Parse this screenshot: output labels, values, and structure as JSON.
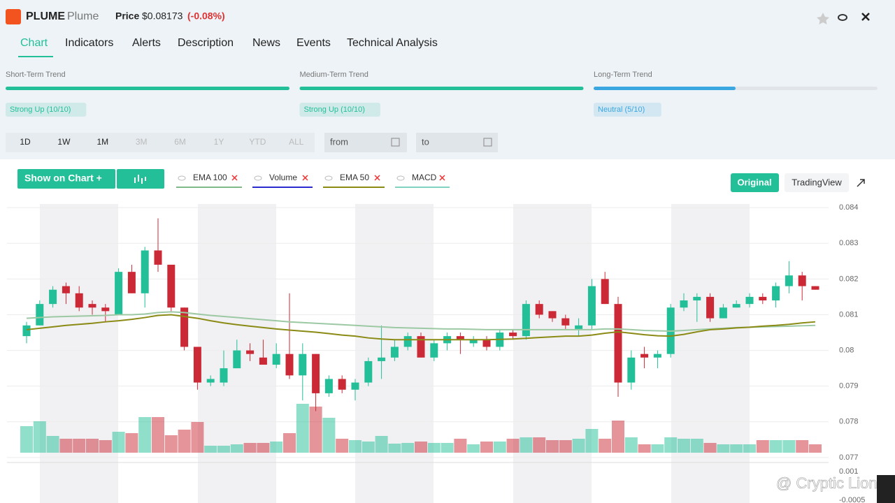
{
  "header": {
    "symbol": "PLUME",
    "name": "Plume",
    "price_label": "Price",
    "price": "$0.08173",
    "change": "(-0.08%)"
  },
  "tabs": [
    "Chart",
    "Indicators",
    "Alerts",
    "Description",
    "News",
    "Events",
    "Technical Analysis"
  ],
  "trends": [
    {
      "label": "Short-Term Trend",
      "status": "Strong Up (10/10)",
      "score": 10,
      "max": 10,
      "color": "#22bf98"
    },
    {
      "label": "Medium-Term Trend",
      "status": "Strong Up (10/10)",
      "score": 10,
      "max": 10,
      "color": "#22bf98"
    },
    {
      "label": "Long-Term Trend",
      "status": "Neutral (5/10)",
      "score": 5,
      "max": 10,
      "color": "#3aa7e0"
    }
  ],
  "ranges": [
    "1D",
    "1W",
    "1M",
    "3M",
    "6M",
    "1Y",
    "YTD",
    "ALL"
  ],
  "date_inputs": [
    "from",
    "to"
  ],
  "toolbar": {
    "show_button": "Show on Chart +",
    "indicators": [
      {
        "name": "EMA 100",
        "color": "#7fb98a"
      },
      {
        "name": "Volume",
        "color": "#2a2ad0"
      },
      {
        "name": "EMA 50",
        "color": "#8a8a14"
      },
      {
        "name": "MACD",
        "color": "#7fd3c0"
      }
    ],
    "views": [
      "Original",
      "TradingView"
    ]
  },
  "chart_data": {
    "type": "candlestick",
    "up_color": "#22bf98",
    "down_color": "#cc2936",
    "open": [
      0.0804,
      0.0807,
      0.0813,
      0.0818,
      0.0816,
      0.0813,
      0.0812,
      0.081,
      0.0822,
      0.0816,
      0.0828,
      0.0824,
      0.0812,
      0.0801,
      0.0791,
      0.0791,
      0.0795,
      0.08,
      0.0798,
      0.0796,
      0.0799,
      0.0793,
      0.0799,
      0.0788,
      0.0792,
      0.0789,
      0.0791,
      0.0797,
      0.0798,
      0.0801,
      0.0804,
      0.0798,
      0.0802,
      0.0804,
      0.0802,
      0.0803,
      0.0801,
      0.0805,
      0.0804,
      0.0813,
      0.0811,
      0.0809,
      0.0806,
      0.0807,
      0.082,
      0.0813,
      0.0791,
      0.0799,
      0.0798,
      0.0799,
      0.0812,
      0.0814,
      0.0815,
      0.0809,
      0.0812,
      0.0813,
      0.0815,
      0.0814,
      0.0818,
      0.0821,
      0.0818
    ],
    "high": [
      0.0808,
      0.0814,
      0.0818,
      0.0819,
      0.0818,
      0.0814,
      0.0813,
      0.0823,
      0.0824,
      0.0829,
      0.0837,
      0.0824,
      0.0812,
      0.0801,
      0.0793,
      0.08,
      0.0803,
      0.0802,
      0.0803,
      0.0802,
      0.0816,
      0.0802,
      0.0799,
      0.0793,
      0.0793,
      0.0792,
      0.0798,
      0.0807,
      0.0803,
      0.0805,
      0.0805,
      0.0803,
      0.0805,
      0.0805,
      0.0804,
      0.0804,
      0.0806,
      0.0806,
      0.0814,
      0.0814,
      0.0811,
      0.081,
      0.0809,
      0.082,
      0.0822,
      0.0815,
      0.08,
      0.0801,
      0.08,
      0.0813,
      0.0816,
      0.0816,
      0.0816,
      0.0813,
      0.0814,
      0.0816,
      0.0816,
      0.0819,
      0.0825,
      0.0822,
      0.0818
    ],
    "low": [
      0.0802,
      0.0807,
      0.0812,
      0.0813,
      0.0811,
      0.081,
      0.0808,
      0.081,
      0.0816,
      0.0812,
      0.0822,
      0.0811,
      0.08,
      0.0789,
      0.079,
      0.079,
      0.0795,
      0.0797,
      0.0796,
      0.0795,
      0.0792,
      0.0786,
      0.0783,
      0.0787,
      0.0788,
      0.0786,
      0.079,
      0.0792,
      0.0797,
      0.08,
      0.0798,
      0.0797,
      0.08,
      0.0799,
      0.0801,
      0.08,
      0.08,
      0.0803,
      0.0803,
      0.0809,
      0.0808,
      0.0806,
      0.0804,
      0.0806,
      0.0813,
      0.0787,
      0.0789,
      0.0795,
      0.0795,
      0.0798,
      0.0811,
      0.0808,
      0.0808,
      0.0809,
      0.0812,
      0.0812,
      0.0813,
      0.0812,
      0.0816,
      0.0814,
      0.0817
    ],
    "close": [
      0.0807,
      0.0813,
      0.0817,
      0.0816,
      0.0812,
      0.0812,
      0.0811,
      0.0822,
      0.0816,
      0.0828,
      0.0824,
      0.0812,
      0.0801,
      0.0791,
      0.0792,
      0.0795,
      0.08,
      0.0799,
      0.0796,
      0.0799,
      0.0793,
      0.0799,
      0.0788,
      0.0792,
      0.0789,
      0.0791,
      0.0797,
      0.0798,
      0.0801,
      0.0804,
      0.0798,
      0.0802,
      0.0804,
      0.0803,
      0.0803,
      0.0801,
      0.0805,
      0.0804,
      0.0813,
      0.081,
      0.0809,
      0.0807,
      0.0807,
      0.0818,
      0.0813,
      0.0791,
      0.0798,
      0.0798,
      0.0799,
      0.0812,
      0.0814,
      0.0815,
      0.0809,
      0.0812,
      0.0813,
      0.0815,
      0.0814,
      0.0818,
      0.0821,
      0.0818,
      0.0817
    ],
    "volume": [
      38,
      45,
      24,
      20,
      20,
      20,
      18,
      30,
      28,
      51,
      51,
      25,
      33,
      44,
      10,
      10,
      12,
      14,
      14,
      16,
      28,
      70,
      66,
      50,
      20,
      18,
      16,
      24,
      13,
      14,
      16,
      14,
      14,
      20,
      12,
      16,
      16,
      20,
      22,
      22,
      18,
      18,
      20,
      34,
      20,
      46,
      22,
      12,
      12,
      22,
      20,
      20,
      14,
      12,
      12,
      12,
      18,
      18,
      18,
      18,
      12
    ],
    "lines": [
      {
        "name": "EMA 100",
        "color": "#9cc9a3",
        "values": [
          0.0809,
          0.08092,
          0.08094,
          0.08095,
          0.08096,
          0.08097,
          0.08098,
          0.081,
          0.081,
          0.08102,
          0.08106,
          0.08108,
          0.08106,
          0.08102,
          0.08098,
          0.08095,
          0.08092,
          0.08089,
          0.08086,
          0.08083,
          0.0808,
          0.08078,
          0.08076,
          0.08074,
          0.08072,
          0.0807,
          0.08068,
          0.08066,
          0.08064,
          0.08063,
          0.08062,
          0.08061,
          0.0806,
          0.0806,
          0.08059,
          0.08058,
          0.08058,
          0.08058,
          0.08058,
          0.08058,
          0.08058,
          0.08058,
          0.08058,
          0.08058,
          0.0806,
          0.0806,
          0.08058,
          0.08056,
          0.08055,
          0.08054,
          0.08056,
          0.08058,
          0.0806,
          0.08062,
          0.08064,
          0.08065,
          0.08066,
          0.08067,
          0.08068,
          0.08069,
          0.0807
        ]
      },
      {
        "name": "EMA 50",
        "color": "#8a8a14",
        "values": [
          0.08058,
          0.08062,
          0.08066,
          0.0807,
          0.08073,
          0.08076,
          0.0808,
          0.08083,
          0.08087,
          0.08092,
          0.08098,
          0.081,
          0.08095,
          0.0809,
          0.08083,
          0.08077,
          0.08072,
          0.08068,
          0.08064,
          0.0806,
          0.08057,
          0.08054,
          0.08051,
          0.08047,
          0.08043,
          0.0804,
          0.08035,
          0.08032,
          0.0803,
          0.0803,
          0.0803,
          0.0803,
          0.0803,
          0.0803,
          0.0803,
          0.0803,
          0.08031,
          0.08032,
          0.08034,
          0.08036,
          0.08038,
          0.0804,
          0.0804,
          0.08043,
          0.08048,
          0.08052,
          0.08048,
          0.08044,
          0.08041,
          0.0804,
          0.08045,
          0.08052,
          0.08058,
          0.0806,
          0.08063,
          0.08065,
          0.08068,
          0.0807,
          0.08073,
          0.08077,
          0.0808
        ]
      }
    ],
    "ylim": [
      0.0769,
      0.08414
    ],
    "yticks": [
      0.084,
      0.083,
      0.082,
      0.081,
      0.08,
      0.079,
      0.078,
      0.077
    ],
    "lower_yticks": [
      0.001,
      -0.0005
    ]
  },
  "watermark": "@ Cryptic Lion"
}
